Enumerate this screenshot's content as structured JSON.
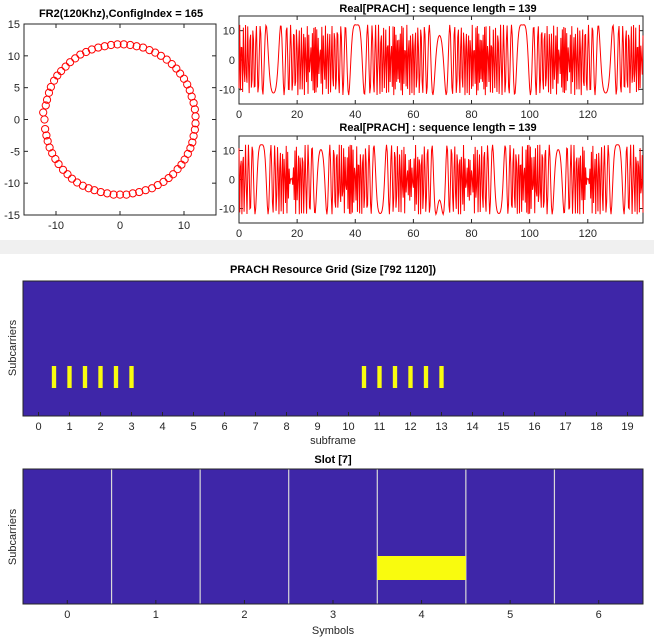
{
  "colors": {
    "signal": "#ff0000",
    "grid_bg": "#3e26a8",
    "grid_fill": "#f9fb0e",
    "divider": "#d9d9d9",
    "axis": "#262626"
  },
  "chart_data": [
    {
      "type": "scatter",
      "title": "FR2(120Khz),ConfigIndex = 165",
      "xlim": [
        -15,
        15
      ],
      "ylim": [
        -15,
        15
      ],
      "xticks": [
        "-10",
        "0",
        "10"
      ],
      "yticks": [
        "15",
        "10",
        "5",
        "0",
        "-5",
        "-10",
        "-15"
      ],
      "marker": "circle",
      "series": [
        {
          "points": [
            [
              -11.8,
              0
            ],
            [
              -11.6,
              2.2
            ],
            [
              -11.1,
              4.2
            ],
            [
              -10.3,
              6.1
            ],
            [
              -9.2,
              7.6
            ],
            [
              -7.8,
              9.0
            ],
            [
              -6.2,
              10.2
            ],
            [
              -4.4,
              11.0
            ],
            [
              -2.4,
              11.5
            ],
            [
              -0.4,
              11.8
            ],
            [
              1.6,
              11.7
            ],
            [
              3.6,
              11.3
            ],
            [
              5.5,
              10.5
            ],
            [
              7.3,
              9.4
            ],
            [
              8.8,
              8.0
            ],
            [
              10.0,
              6.4
            ],
            [
              10.9,
              4.6
            ],
            [
              11.5,
              2.6
            ],
            [
              11.8,
              0.5
            ],
            [
              11.7,
              -1.6
            ],
            [
              11.3,
              -3.6
            ],
            [
              10.6,
              -5.4
            ],
            [
              9.6,
              -7.1
            ],
            [
              8.3,
              -8.6
            ],
            [
              6.8,
              -9.8
            ],
            [
              5.0,
              -10.8
            ],
            [
              3.0,
              -11.4
            ],
            [
              1.0,
              -11.8
            ],
            [
              -1.0,
              -11.8
            ],
            [
              -3.0,
              -11.4
            ],
            [
              -4.9,
              -10.8
            ],
            [
              -6.7,
              -9.9
            ],
            [
              -8.2,
              -8.6
            ],
            [
              -9.6,
              -7.0
            ],
            [
              -10.6,
              -5.3
            ],
            [
              -11.3,
              -3.4
            ],
            [
              -11.7,
              -1.5
            ],
            [
              -12.0,
              1.1
            ],
            [
              -11.4,
              3.1
            ],
            [
              -10.8,
              5.1
            ],
            [
              -9.8,
              6.9
            ],
            [
              -8.5,
              8.3
            ],
            [
              -7.0,
              9.6
            ],
            [
              -5.3,
              10.6
            ],
            [
              -3.4,
              11.3
            ],
            [
              -1.4,
              11.7
            ],
            [
              0.6,
              11.8
            ],
            [
              2.6,
              11.5
            ],
            [
              4.6,
              10.9
            ],
            [
              6.4,
              10.0
            ],
            [
              8.1,
              8.7
            ],
            [
              9.4,
              7.2
            ],
            [
              10.5,
              5.5
            ],
            [
              11.2,
              3.6
            ],
            [
              11.7,
              1.6
            ],
            [
              11.8,
              -0.6
            ],
            [
              11.5,
              -2.6
            ],
            [
              11.0,
              -4.5
            ],
            [
              10.1,
              -6.3
            ],
            [
              9.0,
              -7.8
            ],
            [
              7.6,
              -9.2
            ],
            [
              5.9,
              -10.3
            ],
            [
              4.0,
              -11.1
            ],
            [
              2.0,
              -11.6
            ],
            [
              0,
              -11.8
            ],
            [
              -2.0,
              -11.6
            ],
            [
              -4.0,
              -11.1
            ],
            [
              -5.8,
              -10.4
            ],
            [
              -7.5,
              -9.3
            ],
            [
              -8.9,
              -7.9
            ],
            [
              -10.1,
              -6.2
            ],
            [
              -11.0,
              -4.4
            ],
            [
              -11.5,
              -2.5
            ]
          ]
        }
      ]
    },
    {
      "type": "line",
      "title": "Real[PRACH] : sequence length = 139",
      "xlim": [
        0,
        139
      ],
      "ylim": [
        -15,
        15
      ],
      "xticks": [
        "0",
        "20",
        "40",
        "60",
        "80",
        "100",
        "120"
      ],
      "yticks": [
        "10",
        "0",
        "-10"
      ],
      "samples": 139,
      "amplitude": 12,
      "chirp_rate": 0.02,
      "center": 69,
      "phase": 0.8
    },
    {
      "type": "line",
      "title": "Real[PRACH] : sequence length = 139",
      "xlim": [
        0,
        139
      ],
      "ylim": [
        -15,
        15
      ],
      "xticks": [
        "0",
        "20",
        "40",
        "60",
        "80",
        "100",
        "120"
      ],
      "yticks": [
        "10",
        "0",
        "-10"
      ],
      "samples": 139,
      "amplitude": 12,
      "chirp_rate": 0.028,
      "center": 69,
      "phase": 2.2
    },
    {
      "type": "heatmap",
      "title": "PRACH Resource Grid (Size [792 1120])",
      "xlabel": "subframe",
      "ylabel": "Subcarriers",
      "xlim": [
        -0.5,
        19.5
      ],
      "xticks": [
        "0",
        "1",
        "2",
        "3",
        "4",
        "5",
        "6",
        "7",
        "8",
        "9",
        "10",
        "11",
        "12",
        "13",
        "14",
        "15",
        "16",
        "17",
        "18",
        "19"
      ],
      "values": [
        0.5,
        1.0,
        1.5,
        2.0,
        2.5,
        3.0,
        10.5,
        11.0,
        11.5,
        12.0,
        12.5,
        13.0
      ]
    },
    {
      "type": "heatmap",
      "title": "Slot [7]",
      "xlabel": "Symbols",
      "ylabel": "Subcarriers",
      "xlim": [
        -0.5,
        6.5
      ],
      "xticks": [
        "0",
        "1",
        "2",
        "3",
        "4",
        "5",
        "6"
      ],
      "active_symbol": 4
    }
  ]
}
